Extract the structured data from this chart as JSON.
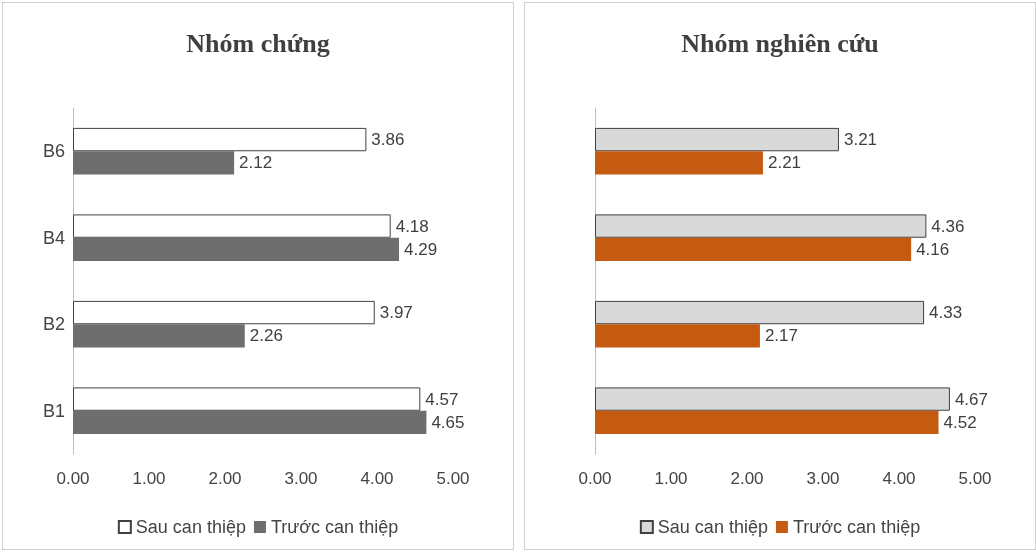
{
  "chart_data": [
    {
      "type": "bar",
      "title": "Nhóm chứng",
      "orientation": "horizontal",
      "categories": [
        "B6",
        "B4",
        "B2",
        "B1"
      ],
      "series": [
        {
          "name": "Sau can thiệp",
          "color": "#ffffff",
          "values": [
            3.86,
            4.18,
            3.97,
            4.57
          ]
        },
        {
          "name": "Trước can thiệp",
          "color": "#6e6e6e",
          "values": [
            2.12,
            4.29,
            2.26,
            4.65
          ]
        }
      ],
      "xlim": [
        0,
        5
      ],
      "xticks": [
        {
          "value": 0,
          "label": "0.00"
        },
        {
          "value": 1,
          "label": "1.00"
        },
        {
          "value": 2,
          "label": "2.00"
        },
        {
          "value": 3,
          "label": "3.00"
        },
        {
          "value": 4,
          "label": "4.00"
        },
        {
          "value": 5,
          "label": "5.00"
        }
      ],
      "data_labels": true,
      "grid": false,
      "legend": "bottom"
    },
    {
      "type": "bar",
      "title": "Nhóm nghiên cứu",
      "orientation": "horizontal",
      "categories": [
        null,
        null,
        null,
        null
      ],
      "series": [
        {
          "name": "Sau can thiệp",
          "color": "#d9d9d9",
          "values": [
            3.21,
            4.36,
            4.33,
            4.67
          ]
        },
        {
          "name": "Trước can thiệp",
          "color": "#c55a11",
          "values": [
            2.21,
            4.16,
            2.17,
            4.52
          ]
        }
      ],
      "xlim": [
        0,
        5
      ],
      "xticks": [
        {
          "value": 0,
          "label": "0.00"
        },
        {
          "value": 1,
          "label": "1.00"
        },
        {
          "value": 2,
          "label": "2.00"
        },
        {
          "value": 3,
          "label": "3.00"
        },
        {
          "value": 4,
          "label": "4.00"
        },
        {
          "value": 5,
          "label": "5.00"
        }
      ],
      "data_labels": true,
      "grid": false,
      "legend": "bottom"
    }
  ]
}
